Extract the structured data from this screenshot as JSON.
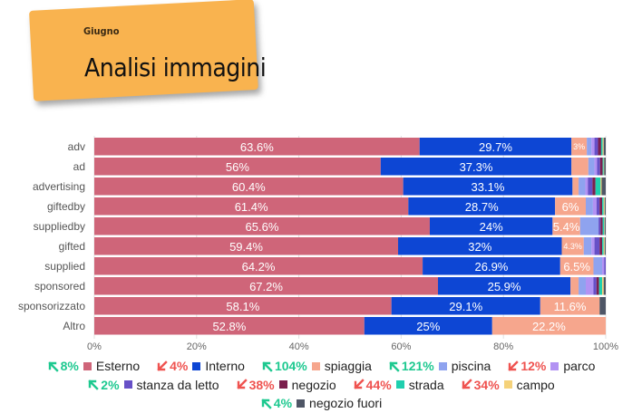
{
  "header": {
    "subtitle": "Giugno",
    "title": "Analisi immagini"
  },
  "chart_data": {
    "type": "bar",
    "orientation": "horizontal",
    "stacked": true,
    "categories": [
      "adv",
      "ad",
      "advertising",
      "giftedby",
      "suppliedby",
      "gifted",
      "supplied",
      "sponsored",
      "sponsorizzato",
      "Altro"
    ],
    "xlim": [
      0,
      100
    ],
    "x_ticks": [
      "0%",
      "20%",
      "40%",
      "60%",
      "80%",
      "100%"
    ],
    "legend_position": "bottom",
    "series": [
      {
        "name": "Esterno",
        "color": "#cf6579",
        "change": "8%",
        "trend": "up",
        "values": [
          63.6,
          56,
          60.4,
          61.4,
          65.6,
          59.4,
          64.2,
          67.2,
          58.1,
          52.8
        ],
        "labels": [
          "63.6%",
          "56%",
          "60.4%",
          "61.4%",
          "65.6%",
          "59.4%",
          "64.2%",
          "67.2%",
          "58.1%",
          "52.8%"
        ]
      },
      {
        "name": "Interno",
        "color": "#0d46d4",
        "change": "4%",
        "trend": "down",
        "values": [
          29.7,
          37.3,
          33.1,
          28.7,
          24,
          32,
          26.9,
          25.9,
          29.1,
          25
        ],
        "labels": [
          "29.7%",
          "37.3%",
          "33.1%",
          "28.7%",
          "24%",
          "32%",
          "26.9%",
          "25.9%",
          "29.1%",
          "25%"
        ]
      },
      {
        "name": "spiaggia",
        "color": "#f6a68d",
        "change": "104%",
        "trend": "up",
        "values": [
          3,
          3.3,
          1.2,
          6,
          5.4,
          4.3,
          6.5,
          1.6,
          11.6,
          22.2
        ],
        "labels": [
          "3%",
          "",
          "",
          "6%",
          "5.4%",
          "4.3%",
          "6.5%",
          "",
          "11.6%",
          "22.2%"
        ]
      },
      {
        "name": "piscina",
        "color": "#8fa3ef",
        "change": "121%",
        "trend": "up",
        "values": [
          0.9,
          1.2,
          1.3,
          1.4,
          3.6,
          1.5,
          1.7,
          1.4,
          0,
          0
        ]
      },
      {
        "name": "parco",
        "color": "#b292f3",
        "change": "12%",
        "trend": "down",
        "values": [
          0.6,
          0.5,
          0.5,
          0.7,
          0,
          0.6,
          0.4,
          1.5,
          0,
          0
        ]
      },
      {
        "name": "stanza da letto",
        "color": "#6750c7",
        "change": "2%",
        "trend": "up",
        "values": [
          0.7,
          0.6,
          0.9,
          0.6,
          0.4,
          1,
          0.3,
          0.6,
          0,
          0
        ]
      },
      {
        "name": "negozio",
        "color": "#7b1f4d",
        "change": "38%",
        "trend": "down",
        "values": [
          0.6,
          0.5,
          0.6,
          0.5,
          0.4,
          0.5,
          0,
          0.5,
          0,
          0
        ]
      },
      {
        "name": "strada",
        "color": "#1fcfae",
        "change": "44%",
        "trend": "down",
        "values": [
          0.3,
          0.2,
          1,
          0.3,
          0.3,
          0.3,
          0,
          0.6,
          0,
          0
        ]
      },
      {
        "name": "campo",
        "color": "#f5d27a",
        "change": "34%",
        "trend": "down",
        "values": [
          0.2,
          0.1,
          0.2,
          0.2,
          0.1,
          0.2,
          0,
          0.3,
          0,
          0
        ]
      },
      {
        "name": "negozio fuori",
        "color": "#4f5666",
        "change": "4%",
        "trend": "up",
        "values": [
          0.4,
          0.3,
          0.8,
          0.2,
          0.2,
          0.2,
          0,
          0.4,
          1.2,
          0
        ]
      }
    ]
  }
}
